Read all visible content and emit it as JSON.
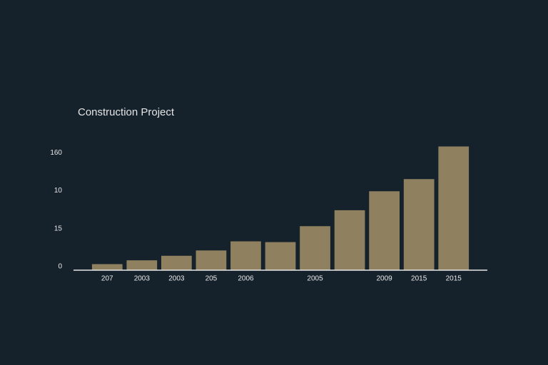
{
  "chart_data": {
    "type": "bar",
    "title": "Construction Project",
    "categories": [
      "207",
      "2003",
      "2003",
      "205",
      "2006",
      null,
      "2005",
      null,
      "2009",
      "2015",
      "2015"
    ],
    "values": [
      8,
      13,
      19,
      26,
      38,
      37,
      58,
      79,
      104,
      120,
      163
    ],
    "color": "#8f8160",
    "ylim": [
      0,
      170
    ],
    "yticks": [
      0,
      {
        "value": 50,
        "label": "15"
      },
      {
        "value": 100,
        "label": "10"
      },
      {
        "value": 150,
        "label": "160"
      }
    ],
    "grid": false
  }
}
